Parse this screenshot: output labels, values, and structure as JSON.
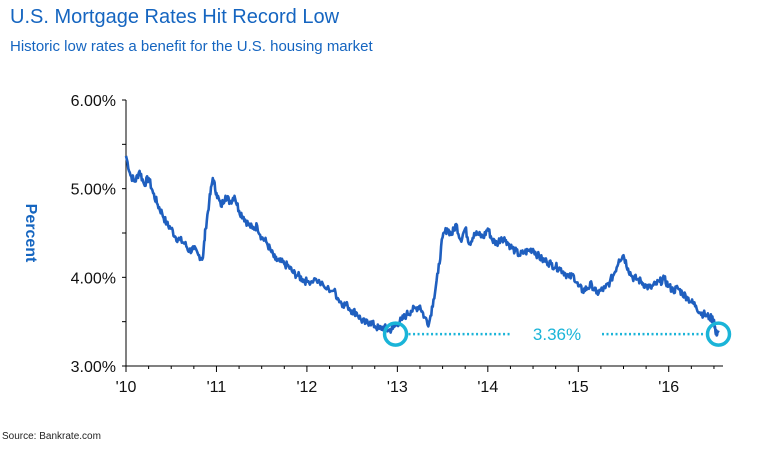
{
  "header": {
    "title": "U.S. Mortgage Rates Hit Record Low",
    "subtitle": "Historic low rates a benefit for the U.S. housing market"
  },
  "footer": {
    "source": "Source: Bankrate.com"
  },
  "colors": {
    "title": "#1565c0",
    "line": "#1f5fbf",
    "annotation": "#1ab4d8",
    "axis": "#000000"
  },
  "chart_data": {
    "type": "line",
    "title": "U.S. Mortgage Rates Hit Record Low",
    "subtitle": "Historic low rates a benefit for the U.S. housing market",
    "xlabel": "",
    "ylabel": "Percent",
    "x_tick_labels": [
      "'10",
      "'11",
      "'12",
      "'13",
      "'14",
      "'15",
      "'16"
    ],
    "x_tick_values": [
      2010,
      2011,
      2012,
      2013,
      2014,
      2015,
      2016
    ],
    "y_tick_labels": [
      "3.00%",
      "4.00%",
      "5.00%",
      "6.00%"
    ],
    "y_tick_values": [
      3.0,
      4.0,
      5.0,
      6.0
    ],
    "xlim": [
      2010,
      2016.6
    ],
    "ylim": [
      3.0,
      6.0
    ],
    "grid": false,
    "series": [
      {
        "x": [
          2010.0,
          2010.05,
          2010.1,
          2010.15,
          2010.2,
          2010.25,
          2010.3,
          2010.35,
          2010.4,
          2010.45,
          2010.5,
          2010.55,
          2010.6,
          2010.65,
          2010.7,
          2010.75,
          2010.8,
          2010.85,
          2010.88,
          2010.92,
          2010.96,
          2011.0,
          2011.05,
          2011.1,
          2011.15,
          2011.2,
          2011.25,
          2011.3,
          2011.35,
          2011.4,
          2011.45,
          2011.5,
          2011.55,
          2011.6,
          2011.65,
          2011.7,
          2011.75,
          2011.8,
          2011.85,
          2011.9,
          2011.95,
          2012.0,
          2012.1,
          2012.2,
          2012.3,
          2012.35,
          2012.4,
          2012.45,
          2012.5,
          2012.55,
          2012.6,
          2012.65,
          2012.7,
          2012.75,
          2012.8,
          2012.85,
          2012.9,
          2012.95,
          2013.0,
          2013.05,
          2013.1,
          2013.15,
          2013.2,
          2013.25,
          2013.3,
          2013.35,
          2013.4,
          2013.45,
          2013.5,
          2013.55,
          2013.6,
          2013.65,
          2013.7,
          2013.75,
          2013.8,
          2013.85,
          2013.9,
          2013.95,
          2014.0,
          2014.05,
          2014.1,
          2014.15,
          2014.2,
          2014.25,
          2014.3,
          2014.35,
          2014.4,
          2014.45,
          2014.5,
          2014.55,
          2014.6,
          2014.65,
          2014.7,
          2014.75,
          2014.8,
          2014.85,
          2014.9,
          2014.95,
          2015.0,
          2015.05,
          2015.1,
          2015.15,
          2015.2,
          2015.25,
          2015.3,
          2015.35,
          2015.4,
          2015.45,
          2015.5,
          2015.55,
          2015.6,
          2015.65,
          2015.7,
          2015.75,
          2015.8,
          2015.85,
          2015.9,
          2015.95,
          2016.0,
          2016.05,
          2016.1,
          2016.15,
          2016.2,
          2016.25,
          2016.3,
          2016.35,
          2016.4,
          2016.45,
          2016.5,
          2016.52,
          2016.55
        ],
        "values": [
          5.37,
          5.15,
          5.08,
          5.2,
          5.05,
          5.12,
          4.95,
          4.82,
          4.72,
          4.6,
          4.55,
          4.45,
          4.42,
          4.38,
          4.3,
          4.32,
          4.25,
          4.22,
          4.55,
          4.85,
          5.12,
          4.95,
          4.8,
          4.92,
          4.85,
          4.92,
          4.75,
          4.68,
          4.6,
          4.55,
          4.58,
          4.45,
          4.4,
          4.3,
          4.2,
          4.18,
          4.15,
          4.12,
          4.05,
          4.02,
          3.98,
          3.95,
          3.98,
          3.88,
          3.85,
          3.75,
          3.7,
          3.68,
          3.62,
          3.6,
          3.52,
          3.48,
          3.5,
          3.45,
          3.42,
          3.44,
          3.4,
          3.42,
          3.48,
          3.52,
          3.58,
          3.62,
          3.65,
          3.68,
          3.55,
          3.48,
          3.75,
          4.05,
          4.45,
          4.55,
          4.48,
          4.6,
          4.42,
          4.55,
          4.38,
          4.5,
          4.48,
          4.45,
          4.55,
          4.42,
          4.38,
          4.45,
          4.42,
          4.35,
          4.3,
          4.25,
          4.28,
          4.3,
          4.32,
          4.25,
          4.2,
          4.18,
          4.15,
          4.12,
          4.1,
          4.05,
          4.0,
          4.02,
          3.9,
          3.85,
          3.88,
          3.92,
          3.82,
          3.85,
          3.88,
          3.95,
          4.05,
          4.2,
          4.25,
          4.1,
          4.0,
          3.98,
          3.95,
          3.9,
          3.88,
          3.92,
          3.95,
          3.98,
          3.9,
          3.85,
          3.88,
          3.82,
          3.78,
          3.72,
          3.68,
          3.6,
          3.58,
          3.55,
          3.52,
          3.36,
          3.4
        ]
      }
    ],
    "annotations": [
      {
        "label": "3.36%",
        "y": 3.36,
        "from_x": 2012.98,
        "to_x": 2016.55
      }
    ]
  }
}
